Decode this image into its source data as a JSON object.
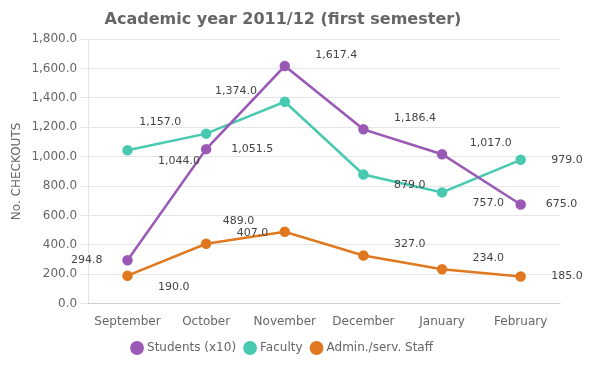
{
  "chart_data": {
    "type": "line",
    "title": "Academic year 2011/12 (first semester)",
    "ylabel": "No. CHECKOUTS",
    "categories": [
      "September",
      "October",
      "November",
      "December",
      "January",
      "February"
    ],
    "series": [
      {
        "name": "Students (x10)",
        "color": "#9B59B6",
        "marker": "circle",
        "values": [
          294.8,
          1051.5,
          1617.4,
          1186.4,
          1017.0,
          675.0
        ],
        "value_labels": [
          "294.8",
          "1,051.5",
          "1,617.4",
          "1,186.4",
          "1,017.0",
          "675.0"
        ]
      },
      {
        "name": "Faculty",
        "color": "#48C9B0",
        "marker": "circle",
        "values": [
          1044.0,
          1157.0,
          1374.0,
          879.0,
          757.0,
          979.0
        ],
        "value_labels": [
          "1,044.0",
          "1,157.0",
          "1,374.0",
          "879.0",
          "757.0",
          "979.0"
        ]
      },
      {
        "name": "Admin./serv. Staff",
        "color": "#E07820",
        "marker": "circle",
        "values": [
          190.0,
          407.0,
          489.0,
          327.0,
          234.0,
          185.0
        ],
        "value_labels": [
          "190.0",
          "407.0",
          "489.0",
          "327.0",
          "234.0",
          "185.0"
        ]
      }
    ],
    "ylim": [
      0,
      1800
    ],
    "yticks": [
      {
        "value": 0,
        "label": "0.0"
      },
      {
        "value": 200,
        "label": "200.0"
      },
      {
        "value": 400,
        "label": "400.0"
      },
      {
        "value": 600,
        "label": "600.0"
      },
      {
        "value": 800,
        "label": "800.0"
      },
      {
        "value": 1000,
        "label": "1,000.0"
      },
      {
        "value": 1200,
        "label": "1,200.0"
      },
      {
        "value": 1400,
        "label": "1,400.0"
      },
      {
        "value": 1600,
        "label": "1,600.0"
      },
      {
        "value": 1800,
        "label": "1,800.0"
      }
    ],
    "grid": true,
    "legend": "bottom",
    "data_labels": true
  }
}
